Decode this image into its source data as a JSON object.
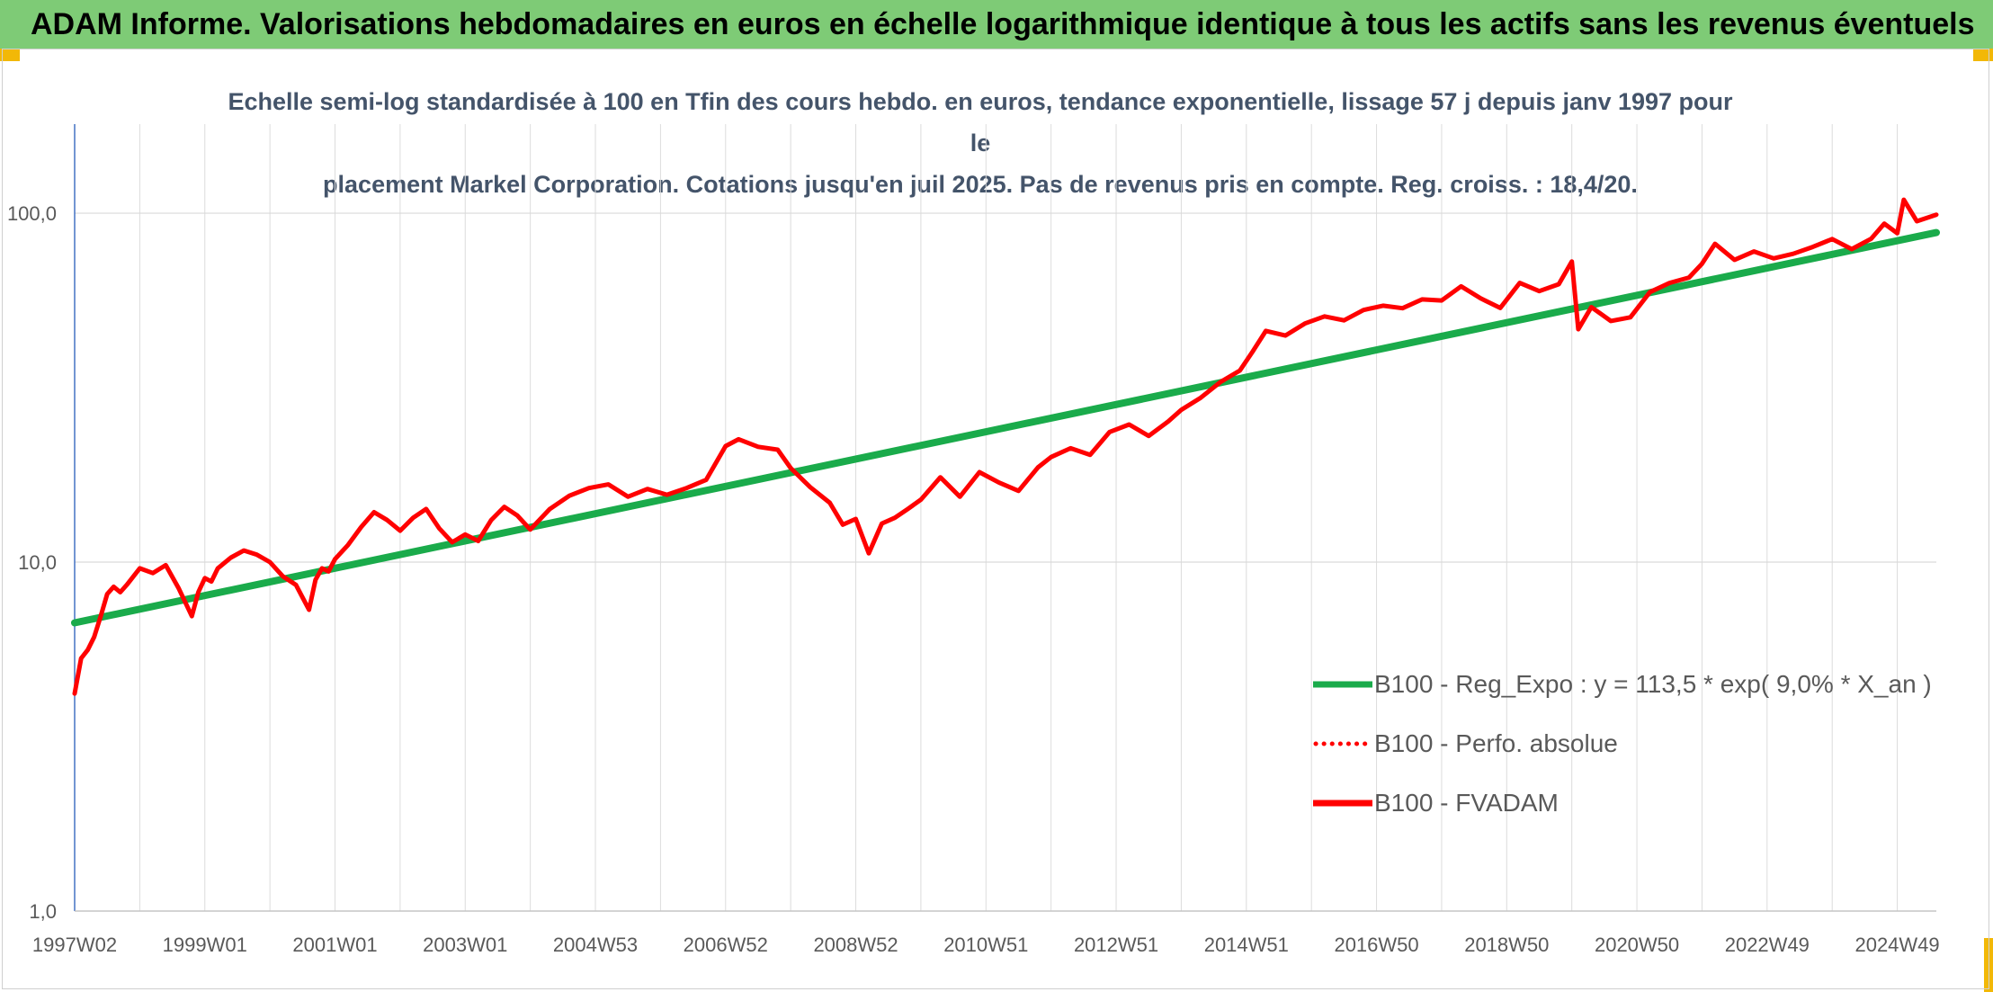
{
  "banner": {
    "title": "ADAM Informe. Valorisations hebdomadaires en euros en échelle logarithmique identique à tous les actifs sans les revenus éventuels"
  },
  "chart_data": {
    "type": "line",
    "subtitle_lines": [
      "Echelle semi-log standardisée à 100 en Tfin des cours hebdo. en euros, tendance exponentielle, lissage 57 j depuis janv 1997 pour le",
      "placement Markel Corporation. Cotations jusqu'en juil 2025. Pas de revenus pris en compte. Reg. croiss. : 18,4/20."
    ],
    "y_scale": "log",
    "ylim": [
      1,
      180
    ],
    "y_ticks": [
      {
        "value": 1,
        "label": "1,0"
      },
      {
        "value": 10,
        "label": "10,0"
      },
      {
        "value": 100,
        "label": "100,0"
      }
    ],
    "xlim": [
      1997.0,
      2025.6
    ],
    "x_ticks": [
      {
        "value": 1997.0,
        "label": "1997W02"
      },
      {
        "value": 1999.0,
        "label": "1999W01"
      },
      {
        "value": 2001.0,
        "label": "2001W01"
      },
      {
        "value": 2003.0,
        "label": "2003W01"
      },
      {
        "value": 2005.0,
        "label": "2004W53"
      },
      {
        "value": 2007.0,
        "label": "2006W52"
      },
      {
        "value": 2009.0,
        "label": "2008W52"
      },
      {
        "value": 2011.0,
        "label": "2010W51"
      },
      {
        "value": 2013.0,
        "label": "2012W51"
      },
      {
        "value": 2015.0,
        "label": "2014W51"
      },
      {
        "value": 2017.0,
        "label": "2016W50"
      },
      {
        "value": 2019.0,
        "label": "2018W50"
      },
      {
        "value": 2021.0,
        "label": "2020W50"
      },
      {
        "value": 2023.0,
        "label": "2022W49"
      },
      {
        "value": 2025.0,
        "label": "2024W49"
      }
    ],
    "grid": "both",
    "legend_position": "bottom-right",
    "series": [
      {
        "name": "B100 - Reg_Expo : y = 113,5 * exp( 9,0% *  X_an )",
        "color": "#1aab4b",
        "style": "solid",
        "x": [
          1997.0,
          2025.6
        ],
        "y": [
          6.7,
          88.0
        ]
      },
      {
        "name": "B100 - Perfo. absolue",
        "color": "#ff0000",
        "style": "dotted",
        "x": [],
        "y": []
      },
      {
        "name": "B100 - FVADAM",
        "color": "#ff0000",
        "style": "solid",
        "x": [
          1997.0,
          1997.1,
          1997.2,
          1997.3,
          1997.4,
          1997.5,
          1997.6,
          1997.7,
          1997.8,
          1998.0,
          1998.2,
          1998.4,
          1998.6,
          1998.8,
          1998.9,
          1999.0,
          1999.1,
          1999.2,
          1999.4,
          1999.6,
          1999.8,
          2000.0,
          2000.2,
          2000.4,
          2000.6,
          2000.7,
          2000.8,
          2000.9,
          2001.0,
          2001.2,
          2001.4,
          2001.6,
          2001.8,
          2002.0,
          2002.2,
          2002.4,
          2002.6,
          2002.8,
          2003.0,
          2003.2,
          2003.4,
          2003.6,
          2003.8,
          2004.0,
          2004.3,
          2004.6,
          2004.9,
          2005.2,
          2005.5,
          2005.8,
          2006.1,
          2006.4,
          2006.7,
          2007.0,
          2007.2,
          2007.5,
          2007.8,
          2008.0,
          2008.3,
          2008.6,
          2008.8,
          2009.0,
          2009.2,
          2009.4,
          2009.6,
          2009.8,
          2010.0,
          2010.3,
          2010.6,
          2010.9,
          2011.2,
          2011.5,
          2011.8,
          2012.0,
          2012.3,
          2012.6,
          2012.9,
          2013.2,
          2013.5,
          2013.8,
          2014.0,
          2014.3,
          2014.6,
          2014.9,
          2015.1,
          2015.3,
          2015.6,
          2015.9,
          2016.2,
          2016.5,
          2016.8,
          2017.1,
          2017.4,
          2017.7,
          2018.0,
          2018.3,
          2018.6,
          2018.9,
          2019.2,
          2019.5,
          2019.8,
          2020.0,
          2020.1,
          2020.3,
          2020.6,
          2020.9,
          2021.2,
          2021.5,
          2021.8,
          2022.0,
          2022.2,
          2022.5,
          2022.8,
          2023.1,
          2023.4,
          2023.7,
          2024.0,
          2024.3,
          2024.6,
          2024.8,
          2025.0,
          2025.1,
          2025.3,
          2025.6
        ],
        "y": [
          4.2,
          5.3,
          5.6,
          6.1,
          7.0,
          8.1,
          8.5,
          8.2,
          8.6,
          9.6,
          9.3,
          9.8,
          8.4,
          7.0,
          8.2,
          9.0,
          8.8,
          9.6,
          10.3,
          10.8,
          10.5,
          10.0,
          9.1,
          8.6,
          7.3,
          8.9,
          9.6,
          9.4,
          10.2,
          11.2,
          12.6,
          13.9,
          13.2,
          12.3,
          13.4,
          14.2,
          12.5,
          11.4,
          12.0,
          11.5,
          13.2,
          14.4,
          13.6,
          12.4,
          14.2,
          15.5,
          16.3,
          16.7,
          15.4,
          16.2,
          15.6,
          16.3,
          17.2,
          21.5,
          22.5,
          21.4,
          21.0,
          18.6,
          16.4,
          14.8,
          12.8,
          13.3,
          10.6,
          12.9,
          13.4,
          14.2,
          15.1,
          17.5,
          15.4,
          18.1,
          16.9,
          16.0,
          18.7,
          20.0,
          21.2,
          20.3,
          23.6,
          24.8,
          23.0,
          25.3,
          27.3,
          29.6,
          32.8,
          35.4,
          40.2,
          46.0,
          44.6,
          48.3,
          50.6,
          49.3,
          52.8,
          54.3,
          53.4,
          56.6,
          56.2,
          61.7,
          57.0,
          53.5,
          63.1,
          59.8,
          62.6,
          72.7,
          46.5,
          53.8,
          49.1,
          50.3,
          59.4,
          63.1,
          65.4,
          71.6,
          81.7,
          73.5,
          77.7,
          74.2,
          76.5,
          80.0,
          84.3,
          78.9,
          84.5,
          93.3,
          87.6,
          109.3,
          94.8,
          99.0
        ]
      }
    ]
  }
}
